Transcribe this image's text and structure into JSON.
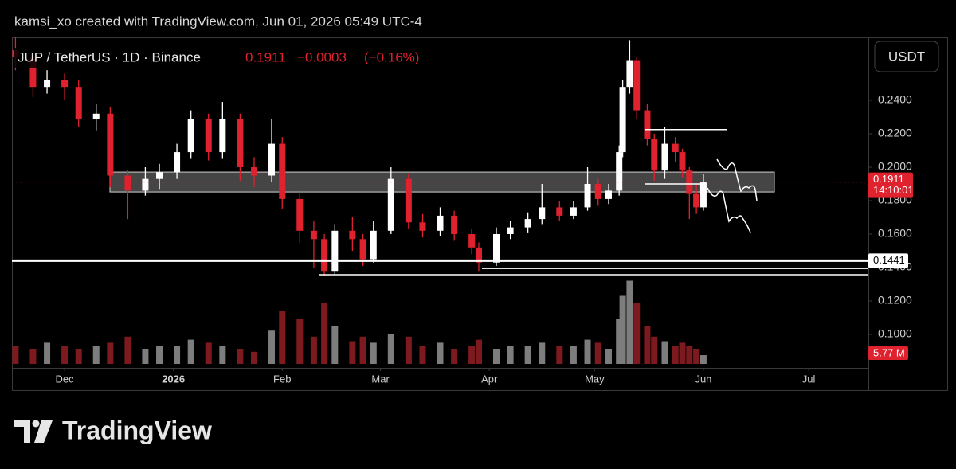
{
  "chart_data": {
    "type": "candlestick",
    "attribution": "kamsi_xo created with TradingView.com, Jun 01, 2026 05:49 UTC-4",
    "symbol": "JUP / TetherUS · 1D · Binance",
    "price_text": "0.1911",
    "change_text": "−0.0003",
    "change_pct_text": "(−0.16%)",
    "currency": "USDT",
    "countdown": "14:10:01",
    "brand": "TradingView",
    "up_color": "#ffffff",
    "down_color": "#e0212e",
    "x": [
      1,
      6,
      10,
      15,
      19,
      24,
      28,
      33,
      38,
      42,
      47,
      51,
      56,
      60,
      65,
      69,
      74,
      77,
      82,
      86,
      89,
      92,
      97,
      100,
      103,
      108,
      113,
      117,
      122,
      126,
      131,
      133,
      138,
      142,
      147,
      151,
      156,
      160,
      164,
      167,
      170,
      173,
      174,
      176,
      178,
      181,
      183,
      186,
      189,
      191,
      193,
      195,
      197
    ],
    "open": [
      0.27,
      0.266,
      0.248,
      0.252,
      0.248,
      0.229,
      0.232,
      0.195,
      0.186,
      0.193,
      0.197,
      0.209,
      0.229,
      0.209,
      0.229,
      0.2,
      0.195,
      0.214,
      0.181,
      0.162,
      0.157,
      0.138,
      0.162,
      0.157,
      0.145,
      0.162,
      0.193,
      0.167,
      0.162,
      0.171,
      0.16,
      0.152,
      0.143,
      0.16,
      0.164,
      0.169,
      0.176,
      0.171,
      0.176,
      0.19,
      0.181,
      0.186,
      0.209,
      0.248,
      0.264,
      0.234,
      0.217,
      0.198,
      0.214,
      0.209,
      0.198,
      0.184,
      0.176
    ],
    "high": [
      0.278,
      0.27,
      0.258,
      0.256,
      0.252,
      0.238,
      0.236,
      0.198,
      0.2,
      0.202,
      0.214,
      0.234,
      0.232,
      0.239,
      0.232,
      0.206,
      0.229,
      0.218,
      0.186,
      0.168,
      0.16,
      0.166,
      0.17,
      0.16,
      0.168,
      0.2,
      0.196,
      0.172,
      0.176,
      0.174,
      0.163,
      0.155,
      0.164,
      0.168,
      0.173,
      0.19,
      0.18,
      0.18,
      0.2,
      0.193,
      0.19,
      0.213,
      0.252,
      0.276,
      0.266,
      0.238,
      0.22,
      0.224,
      0.218,
      0.211,
      0.2,
      0.19,
      0.196
    ],
    "low": [
      0.258,
      0.242,
      0.244,
      0.24,
      0.224,
      0.222,
      0.188,
      0.169,
      0.183,
      0.187,
      0.193,
      0.205,
      0.204,
      0.205,
      0.192,
      0.188,
      0.191,
      0.175,
      0.155,
      0.14,
      0.135,
      0.136,
      0.15,
      0.141,
      0.143,
      0.16,
      0.163,
      0.158,
      0.159,
      0.156,
      0.148,
      0.138,
      0.141,
      0.157,
      0.161,
      0.166,
      0.168,
      0.169,
      0.174,
      0.177,
      0.178,
      0.183,
      0.206,
      0.244,
      0.229,
      0.213,
      0.192,
      0.193,
      0.203,
      0.194,
      0.169,
      0.172,
      0.174
    ],
    "close": [
      0.266,
      0.248,
      0.252,
      0.248,
      0.229,
      0.232,
      0.195,
      0.186,
      0.193,
      0.197,
      0.209,
      0.229,
      0.209,
      0.229,
      0.2,
      0.195,
      0.214,
      0.181,
      0.162,
      0.157,
      0.138,
      0.162,
      0.157,
      0.145,
      0.162,
      0.193,
      0.167,
      0.162,
      0.171,
      0.16,
      0.152,
      0.143,
      0.16,
      0.164,
      0.169,
      0.176,
      0.171,
      0.176,
      0.19,
      0.181,
      0.186,
      0.209,
      0.248,
      0.264,
      0.234,
      0.217,
      0.198,
      0.214,
      0.209,
      0.198,
      0.184,
      0.176,
      0.1911
    ],
    "volume": [
      12,
      10,
      14,
      12,
      10,
      12,
      14,
      18,
      10,
      12,
      12,
      16,
      14,
      12,
      10,
      8,
      22,
      35,
      30,
      18,
      40,
      25,
      15,
      18,
      14,
      20,
      18,
      12,
      14,
      10,
      12,
      16,
      10,
      12,
      12,
      14,
      12,
      12,
      16,
      14,
      10,
      30,
      45,
      55,
      40,
      25,
      18,
      15,
      12,
      14,
      12,
      10,
      5.77
    ],
    "volume_last_label": "5.77 M",
    "xlim": [
      0,
      244
    ],
    "xticks": [
      {
        "value": 15,
        "label": "Dec"
      },
      {
        "value": 46,
        "label": "2026"
      },
      {
        "value": 77,
        "label": "Feb"
      },
      {
        "value": 105,
        "label": "Mar"
      },
      {
        "value": 136,
        "label": "Apr"
      },
      {
        "value": 166,
        "label": "May"
      },
      {
        "value": 197,
        "label": "Jun"
      },
      {
        "value": 227,
        "label": "Jul"
      }
    ],
    "ylim": [
      0.0824,
      0.2776
    ],
    "yticks": [
      {
        "value": 0.24,
        "label": "0.2400"
      },
      {
        "value": 0.22,
        "label": "0.2200"
      },
      {
        "value": 0.2,
        "label": "0.2000"
      },
      {
        "value": 0.18,
        "label": "0.1800"
      },
      {
        "value": 0.16,
        "label": "0.1600"
      },
      {
        "value": 0.14,
        "label": "0.1400"
      },
      {
        "value": 0.12,
        "label": "0.1200"
      },
      {
        "value": 0.1,
        "label": "0.1000"
      }
    ],
    "last_price": {
      "value": 0.1911,
      "label": "0.1911"
    },
    "support": {
      "value": 0.1441,
      "label": "0.1441"
    },
    "hlines": [
      0.1395,
      0.1357,
      0.2225,
      0.19
    ],
    "zone": [
      0.1852,
      0.1971
    ]
  }
}
